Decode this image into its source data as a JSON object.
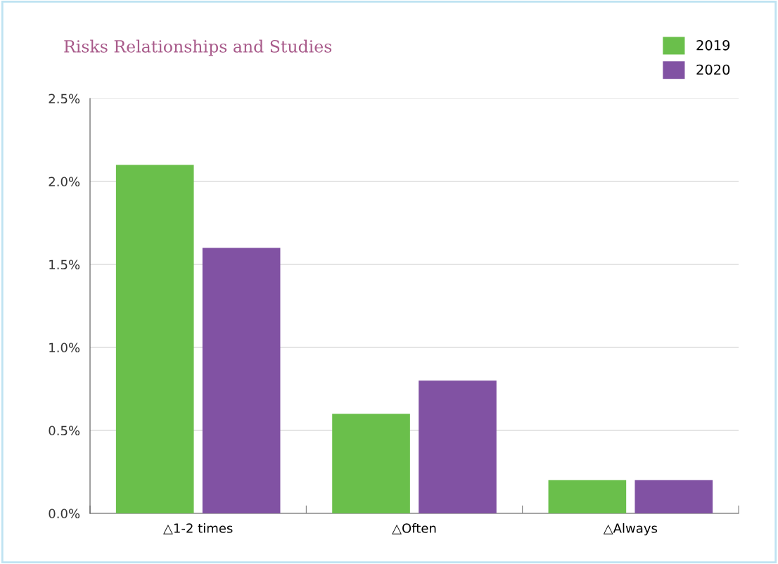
{
  "chart_data": {
    "type": "bar",
    "title": "Risks Relationships and Studies",
    "categories": [
      "△1-2 times",
      "△Often",
      "△Always"
    ],
    "series": [
      {
        "name": "2019",
        "color": "#6abf4b",
        "values": [
          2.1,
          0.6,
          0.2
        ]
      },
      {
        "name": "2020",
        "color": "#8152a3",
        "values": [
          1.6,
          0.8,
          0.2
        ]
      }
    ],
    "ylim": [
      0,
      2.5
    ],
    "yticks": [
      {
        "value": 0,
        "label": "0.0%"
      },
      {
        "value": 0.5,
        "label": "0.5%"
      },
      {
        "value": 1,
        "label": "1.0%"
      },
      {
        "value": 1.5,
        "label": "1.5%"
      },
      {
        "value": 2,
        "label": "2.0%"
      },
      {
        "value": 2.5,
        "label": "2.5%"
      }
    ],
    "grid": "y",
    "legend": "top right"
  }
}
